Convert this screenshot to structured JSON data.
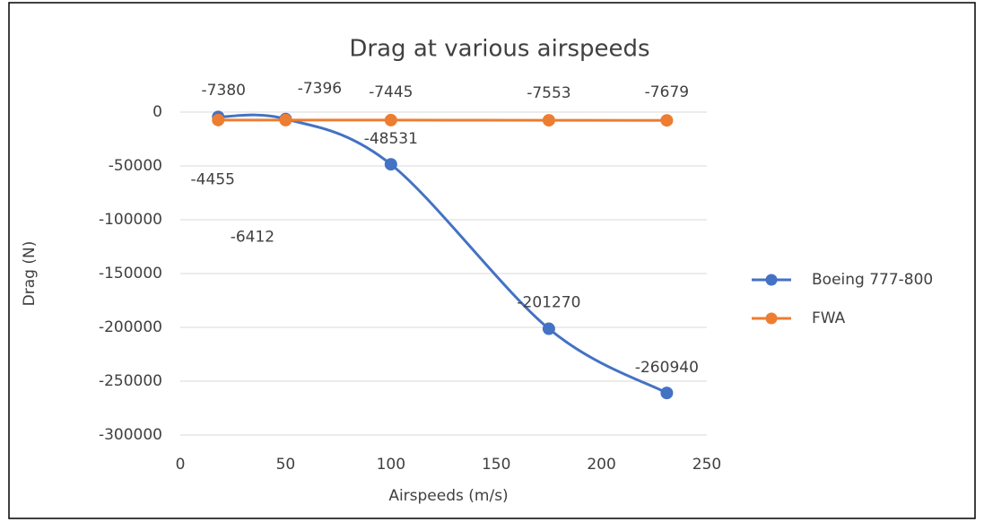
{
  "chart_data": {
    "type": "scatter",
    "title": "Drag at various airspeeds",
    "x_label": "Airspeeds (m/s)",
    "y_label": "Drag (N)",
    "x": [
      18,
      50,
      100,
      175,
      231
    ],
    "series": [
      {
        "name": "Boeing 777-800",
        "color": "#4472c4",
        "values": [
          -4455,
          -6412,
          -48531,
          -201270,
          -260940
        ]
      },
      {
        "name": "FWA",
        "color": "#ed7d31",
        "values": [
          -7380,
          -7396,
          -7445,
          -7553,
          -7679
        ]
      }
    ],
    "xlim": [
      0,
      250
    ],
    "xticks": [
      0,
      50,
      100,
      150,
      200,
      250
    ],
    "ylim": [
      -300000,
      0
    ],
    "yticks": [
      -300000,
      -250000,
      -200000,
      -150000,
      -100000,
      -50000,
      0
    ],
    "grid": true,
    "smooth": true,
    "legend": "right"
  }
}
